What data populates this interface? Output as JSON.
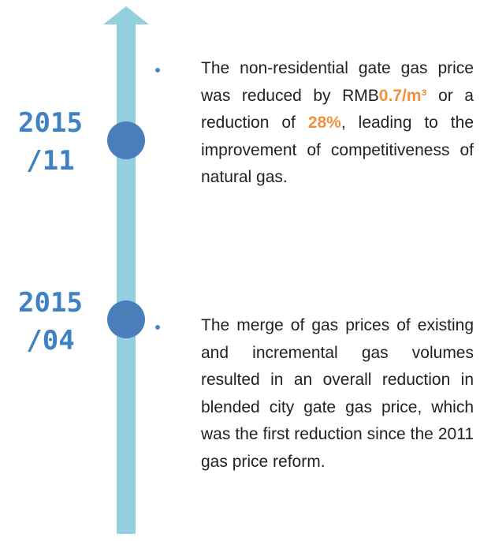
{
  "events": [
    {
      "date": [
        "2015",
        "/11"
      ],
      "text": [
        {
          "text": "The non-residential gate gas price was reduced by RMB"
        },
        {
          "text": "0.7/m³",
          "emphasis": true
        },
        {
          "text": " or a reduction of "
        },
        {
          "text": "28%",
          "emphasis": true
        },
        {
          "text": ", leading to the improvement of competitiveness of natural gas."
        }
      ]
    },
    {
      "date": [
        "2015",
        "/04"
      ],
      "text": [
        {
          "text": "The merge of gas prices of existing and incremental gas volumes resulted in an overall reduction in blended city gate gas price, which was the first reduction since the 2011 gas price reform."
        }
      ]
    }
  ]
}
